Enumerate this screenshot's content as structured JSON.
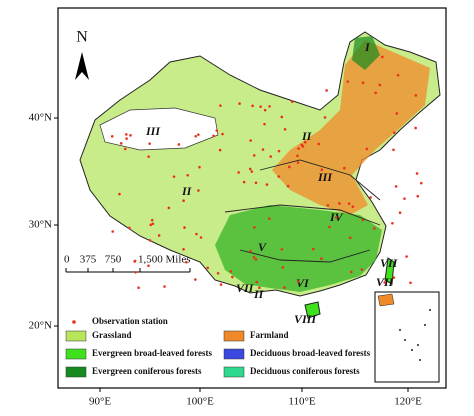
{
  "map": {
    "north": "N",
    "lat_labels": [
      "40°N",
      "30°N",
      "20°N"
    ],
    "lon_labels": [
      "90°E",
      "100°E",
      "110°E",
      "120°E"
    ],
    "scale_bar": [
      "0",
      "375",
      "750",
      "1,500 Miles"
    ],
    "regions": [
      "I",
      "II",
      "III",
      "III",
      "II",
      "IV",
      "V",
      "VI",
      "VII",
      "II",
      "VII",
      "VII",
      "VIII"
    ],
    "legend": [
      {
        "name": "Observation station",
        "color": "#e8321e"
      },
      {
        "name": "Grassland",
        "color": "#b8e45c"
      },
      {
        "name": "Farmland",
        "color": "#f08a28"
      },
      {
        "name": "Evergreen broad-leaved forests",
        "color": "#3fe01c"
      },
      {
        "name": "Deciduous broad-leaved forests",
        "color": "#3a48e0"
      },
      {
        "name": "Evergreen coniferous forests",
        "color": "#168a1e"
      },
      {
        "name": "Deciduous coniferous forests",
        "color": "#2ed88e"
      }
    ]
  }
}
